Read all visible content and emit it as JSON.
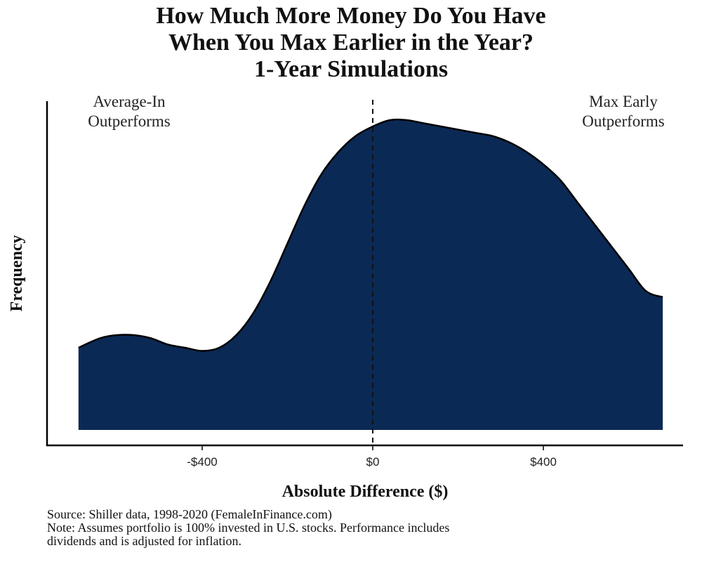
{
  "title": {
    "line1": "How Much More Money Do You Have",
    "line2": "When You Max Earlier in the Year?",
    "line3": "1-Year Simulations"
  },
  "annotations": {
    "left_line1": "Average-In",
    "left_line2": "Outperforms",
    "right_line1": "Max Early",
    "right_line2": "Outperforms"
  },
  "footer": {
    "source": "Source: Shiller data, 1998-2020 (FemaleInFinance.com)",
    "note_line1": "Note: Assumes portfolio is 100% invested in U.S. stocks. Performance includes",
    "note_line2": "dividends and is adjusted for inflation."
  },
  "chart_data": {
    "type": "area",
    "subtype": "density",
    "xlabel": "Absolute Difference ($)",
    "ylabel": "Frequency",
    "xlim": [
      -700,
      720
    ],
    "ylim": [
      0,
      1.0
    ],
    "x_ticks": [
      -400,
      0,
      400
    ],
    "x_tick_labels": [
      "-$400",
      "$0",
      "$400"
    ],
    "y_ticks_shown": false,
    "grid": false,
    "fill_color": "#0b2955",
    "line_color": "#000000",
    "reference_line": {
      "x": 0,
      "style": "dashed"
    },
    "x": [
      -690,
      -640,
      -600,
      -560,
      -520,
      -480,
      -440,
      -400,
      -360,
      -320,
      -280,
      -240,
      -200,
      -160,
      -120,
      -80,
      -40,
      0,
      40,
      80,
      120,
      160,
      200,
      240,
      280,
      320,
      360,
      400,
      440,
      480,
      520,
      560,
      600,
      640,
      680
    ],
    "values": [
      0.26,
      0.29,
      0.3,
      0.3,
      0.29,
      0.27,
      0.26,
      0.25,
      0.26,
      0.3,
      0.37,
      0.47,
      0.59,
      0.71,
      0.81,
      0.88,
      0.93,
      0.96,
      0.98,
      0.98,
      0.97,
      0.96,
      0.95,
      0.94,
      0.93,
      0.91,
      0.88,
      0.84,
      0.79,
      0.72,
      0.65,
      0.58,
      0.51,
      0.44,
      0.42
    ]
  }
}
